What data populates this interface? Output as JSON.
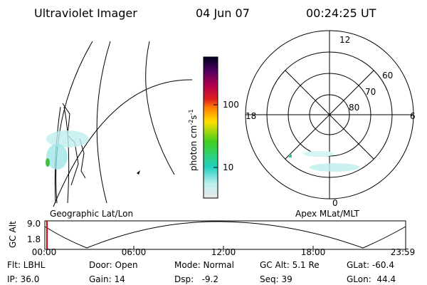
{
  "header": {
    "title": "Ultraviolet Imager",
    "date": "04 Jun 07",
    "time": "00:24:25 UT"
  },
  "colorbar": {
    "label": {
      "unit": "photon cm",
      "exp1": "-2",
      "unit2": "s",
      "exp2": "-1"
    },
    "ticks": [
      "100",
      "10"
    ]
  },
  "left_panel": {
    "label": "Geographic Lat/Lon"
  },
  "right_panel": {
    "label": "Apex MLat/MLT",
    "hour_labels": [
      "12",
      "18",
      "6",
      "0"
    ],
    "lat_labels": [
      "60",
      "70",
      "80"
    ]
  },
  "altitude_strip": {
    "axis_label": "GC Alt",
    "y_labels": [
      "9.0",
      "1.8"
    ],
    "time_labels": [
      "00:00",
      "06:00",
      "12:00",
      "18:00",
      "23:59"
    ]
  },
  "info": {
    "rows": [
      [
        "Flt: LBHL",
        "Door: Open",
        "Mode: Normal",
        "GC Alt: 5.1 Re",
        "GLat: -60.4"
      ],
      [
        "IP: 36.0",
        "Gain: 14",
        "Dsp:   -9.2",
        "Seq: 39",
        "GLon:  44.4"
      ]
    ]
  }
}
